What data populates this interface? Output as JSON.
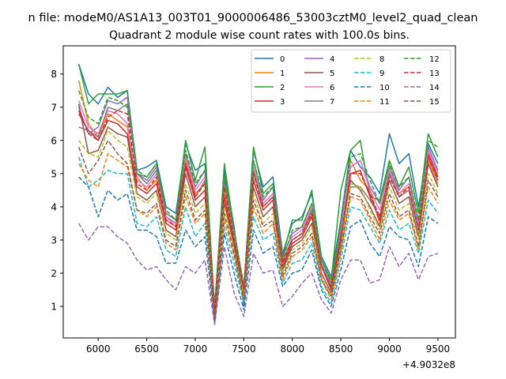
{
  "figure": {
    "suptitle": "n file: modeM0/AS1A13_003T01_9000006486_53003cztM0_level2_quad_clean",
    "title": "Quadrant 2 module wise count rates with 100.0s bins.",
    "offset_label": "+4.9032e8"
  },
  "chart_data": {
    "type": "line",
    "title": "Quadrant 2 module wise count rates with 100.0s bins.",
    "xlabel": "",
    "ylabel": "",
    "xlim": [
      5640,
      9680
    ],
    "ylim": [
      0.05,
      8.85
    ],
    "x_offset": "+4.9032e8",
    "xticks": [
      6000,
      6500,
      7000,
      7500,
      8000,
      8500,
      9000,
      9500
    ],
    "xtick_labels": [
      "6000",
      "6500",
      "7000",
      "7500",
      "8000",
      "8500",
      "9000",
      "9500"
    ],
    "yticks": [
      1,
      2,
      3,
      4,
      5,
      6,
      7,
      8
    ],
    "ytick_labels": [
      "1",
      "2",
      "3",
      "4",
      "5",
      "6",
      "7",
      "8"
    ],
    "grid": false,
    "legend_position": "top-right",
    "legend_columns": 4,
    "x": [
      5800,
      5900,
      6000,
      6100,
      6200,
      6300,
      6400,
      6500,
      6600,
      6700,
      6800,
      6900,
      7000,
      7100,
      7200,
      7300,
      7400,
      7500,
      7600,
      7700,
      7800,
      7900,
      8000,
      8100,
      8200,
      8300,
      8400,
      8500,
      8600,
      8700,
      8800,
      8900,
      9000,
      9100,
      9200,
      9300,
      9400,
      9500
    ],
    "series": [
      {
        "name": "0",
        "color": "#1f77b4",
        "dash": "solid",
        "values": [
          8.3,
          7.4,
          7.1,
          7.6,
          7.3,
          7.5,
          5.1,
          5.2,
          5.4,
          4.0,
          3.8,
          5.9,
          5.1,
          5.3,
          1.0,
          5.1,
          3.4,
          1.0,
          5.7,
          4.6,
          4.9,
          2.6,
          3.5,
          3.7,
          4.4,
          2.5,
          1.9,
          3.6,
          5.7,
          5.2,
          4.9,
          4.4,
          6.2,
          5.3,
          5.6,
          4.0,
          5.9,
          5.3
        ]
      },
      {
        "name": "1",
        "color": "#ff7f0e",
        "dash": "solid",
        "values": [
          7.8,
          6.5,
          6.1,
          6.8,
          6.6,
          6.4,
          4.9,
          4.5,
          4.8,
          3.6,
          3.4,
          5.4,
          4.4,
          4.7,
          0.8,
          4.5,
          3.0,
          1.5,
          5.0,
          4.1,
          4.4,
          2.3,
          3.0,
          3.2,
          3.8,
          2.2,
          1.6,
          3.1,
          5.4,
          4.8,
          4.5,
          3.5,
          5.1,
          4.4,
          4.6,
          3.4,
          5.4,
          4.7
        ]
      },
      {
        "name": "2",
        "color": "#2ca02c",
        "dash": "solid",
        "values": [
          8.3,
          7.1,
          7.4,
          7.4,
          7.4,
          7.5,
          5.0,
          4.9,
          5.3,
          3.8,
          3.6,
          6.0,
          4.8,
          5.8,
          0.9,
          5.3,
          3.3,
          1.6,
          5.8,
          4.4,
          4.7,
          2.5,
          3.6,
          3.6,
          4.5,
          2.4,
          1.8,
          4.5,
          5.7,
          6.0,
          4.3,
          4.2,
          5.4,
          4.6,
          5.2,
          3.8,
          6.2,
          5.5
        ]
      },
      {
        "name": "3",
        "color": "#d62728",
        "dash": "solid",
        "values": [
          6.8,
          6.3,
          6.0,
          6.6,
          6.5,
          6.2,
          4.6,
          4.4,
          4.7,
          3.5,
          3.3,
          5.2,
          4.2,
          4.5,
          0.8,
          4.3,
          2.9,
          1.5,
          4.8,
          3.9,
          4.2,
          2.2,
          2.9,
          3.1,
          3.7,
          2.2,
          1.5,
          3.0,
          5.0,
          5.1,
          4.3,
          3.6,
          5.0,
          4.3,
          4.5,
          3.3,
          5.6,
          4.9
        ]
      },
      {
        "name": "4",
        "color": "#9467bd",
        "dash": "solid",
        "values": [
          7.0,
          6.2,
          6.4,
          7.2,
          7.1,
          7.3,
          5.0,
          4.8,
          5.2,
          3.7,
          3.5,
          5.6,
          4.6,
          5.1,
          0.9,
          4.9,
          3.2,
          1.6,
          5.4,
          4.2,
          4.6,
          2.5,
          3.2,
          3.4,
          4.1,
          2.3,
          1.7,
          3.4,
          5.2,
          5.4,
          4.6,
          4.1,
          5.2,
          4.5,
          4.9,
          3.5,
          5.8,
          5.1
        ]
      },
      {
        "name": "5",
        "color": "#8c564b",
        "dash": "solid",
        "values": [
          7.1,
          5.6,
          5.7,
          6.4,
          6.2,
          6.1,
          4.4,
          4.2,
          4.5,
          3.3,
          3.1,
          5.0,
          4.0,
          4.3,
          0.7,
          4.1,
          2.8,
          1.3,
          4.6,
          3.7,
          4.0,
          2.1,
          2.8,
          3.0,
          3.5,
          2.0,
          1.4,
          2.9,
          4.8,
          4.5,
          4.0,
          3.4,
          4.8,
          4.1,
          4.3,
          3.1,
          5.3,
          4.6
        ]
      },
      {
        "name": "6",
        "color": "#e377c2",
        "dash": "solid",
        "values": [
          7.2,
          6.4,
          6.2,
          6.9,
          6.8,
          6.5,
          4.8,
          4.6,
          5.0,
          3.7,
          3.4,
          5.5,
          4.5,
          4.9,
          0.8,
          4.7,
          3.1,
          1.5,
          5.2,
          4.1,
          4.4,
          2.3,
          3.1,
          3.3,
          4.0,
          2.3,
          1.6,
          3.3,
          5.2,
          5.4,
          4.5,
          3.9,
          5.1,
          4.4,
          4.7,
          3.4,
          5.7,
          5.0
        ]
      },
      {
        "name": "7",
        "color": "#7f7f7f",
        "dash": "solid",
        "values": [
          6.4,
          6.3,
          6.1,
          7.0,
          6.9,
          7.1,
          5.0,
          4.7,
          5.1,
          3.8,
          3.6,
          5.3,
          4.3,
          4.8,
          0.8,
          4.8,
          3.2,
          1.4,
          5.1,
          4.0,
          4.3,
          2.4,
          3.0,
          3.2,
          3.9,
          2.2,
          1.6,
          3.2,
          4.6,
          4.6,
          4.2,
          3.7,
          5.0,
          4.3,
          4.5,
          3.3,
          5.5,
          4.8
        ]
      },
      {
        "name": "8",
        "color": "#bcbd22",
        "dash": "dashed",
        "values": [
          6.0,
          5.6,
          5.5,
          6.3,
          6.0,
          5.8,
          4.3,
          4.1,
          4.4,
          3.2,
          3.0,
          4.7,
          3.8,
          4.1,
          0.7,
          4.0,
          2.7,
          1.3,
          4.4,
          3.5,
          3.8,
          2.0,
          2.7,
          2.9,
          3.4,
          1.9,
          1.3,
          2.8,
          4.7,
          4.6,
          3.9,
          3.3,
          4.6,
          3.9,
          4.1,
          3.0,
          5.0,
          4.4
        ]
      },
      {
        "name": "9",
        "color": "#17becf",
        "dash": "dashed",
        "values": [
          5.5,
          4.6,
          4.8,
          5.1,
          5.0,
          5.0,
          3.5,
          3.4,
          3.7,
          2.7,
          2.5,
          4.0,
          3.1,
          3.5,
          0.6,
          3.4,
          2.3,
          1.1,
          3.7,
          3.0,
          3.2,
          1.7,
          2.3,
          2.4,
          2.9,
          1.6,
          1.1,
          2.4,
          4.0,
          3.9,
          3.4,
          2.9,
          3.9,
          3.3,
          3.5,
          2.6,
          4.2,
          3.8
        ]
      },
      {
        "name": "10",
        "color": "#1f77b4",
        "dash": "dashed",
        "values": [
          4.9,
          4.6,
          3.7,
          4.5,
          4.2,
          4.4,
          3.3,
          3.3,
          3.1,
          2.3,
          2.3,
          3.3,
          2.8,
          3.1,
          0.5,
          3.2,
          2.0,
          0.9,
          3.3,
          2.6,
          2.8,
          1.6,
          2.0,
          2.1,
          2.7,
          1.5,
          1.0,
          2.1,
          3.4,
          3.6,
          2.9,
          2.5,
          3.4,
          3.1,
          3.0,
          2.2,
          3.7,
          3.5
        ]
      },
      {
        "name": "11",
        "color": "#ff7f0e",
        "dash": "dashed",
        "values": [
          5.3,
          4.8,
          4.6,
          5.6,
          5.4,
          5.2,
          3.9,
          3.7,
          4.0,
          2.9,
          2.7,
          4.3,
          3.5,
          3.8,
          0.6,
          3.6,
          2.5,
          1.2,
          4.0,
          3.2,
          3.5,
          1.8,
          2.5,
          2.7,
          3.1,
          1.8,
          1.2,
          2.6,
          4.3,
          4.2,
          3.6,
          3.0,
          4.2,
          3.6,
          3.8,
          2.7,
          4.6,
          4.1
        ]
      },
      {
        "name": "12",
        "color": "#2ca02c",
        "dash": "dashed",
        "values": [
          7.5,
          6.7,
          6.5,
          7.3,
          7.2,
          7.0,
          5.1,
          4.9,
          5.3,
          3.9,
          3.6,
          5.7,
          4.7,
          5.1,
          0.9,
          4.9,
          3.3,
          1.6,
          5.4,
          4.3,
          4.6,
          2.4,
          3.3,
          3.4,
          4.1,
          2.4,
          1.7,
          3.5,
          5.5,
          5.6,
          4.8,
          4.1,
          5.3,
          4.6,
          4.9,
          3.6,
          6.0,
          5.8
        ]
      },
      {
        "name": "13",
        "color": "#d62728",
        "dash": "dashed",
        "values": [
          6.9,
          6.2,
          6.0,
          6.7,
          6.9,
          6.8,
          4.7,
          4.5,
          4.9,
          3.6,
          3.4,
          5.3,
          4.3,
          4.7,
          0.8,
          4.6,
          3.0,
          1.5,
          5.0,
          4.0,
          4.3,
          2.3,
          3.0,
          3.2,
          3.8,
          2.2,
          1.6,
          3.1,
          5.0,
          5.0,
          4.4,
          3.7,
          4.9,
          4.3,
          4.6,
          3.3,
          5.5,
          4.8
        ]
      },
      {
        "name": "14",
        "color": "#9467bd",
        "dash": "dashed",
        "values": [
          3.5,
          3.0,
          3.4,
          3.4,
          3.1,
          2.9,
          2.4,
          2.1,
          2.2,
          1.8,
          1.5,
          2.2,
          2.0,
          2.4,
          0.45,
          2.8,
          1.4,
          0.7,
          2.6,
          2.0,
          2.1,
          1.0,
          1.3,
          1.7,
          2.0,
          1.2,
          0.8,
          1.8,
          2.4,
          2.4,
          1.7,
          1.8,
          2.8,
          2.2,
          2.6,
          1.8,
          2.5,
          2.6
        ]
      },
      {
        "name": "15",
        "color": "#8c564b",
        "dash": "dashed",
        "values": [
          5.8,
          5.0,
          5.4,
          6.0,
          5.6,
          5.3,
          3.9,
          3.8,
          4.1,
          3.0,
          2.8,
          4.5,
          3.6,
          3.9,
          0.6,
          3.8,
          2.6,
          1.2,
          4.2,
          3.4,
          3.6,
          1.9,
          2.6,
          2.8,
          3.2,
          1.8,
          1.3,
          2.7,
          4.4,
          4.3,
          3.7,
          3.2,
          4.4,
          3.7,
          3.9,
          2.8,
          4.8,
          4.3
        ]
      }
    ]
  }
}
